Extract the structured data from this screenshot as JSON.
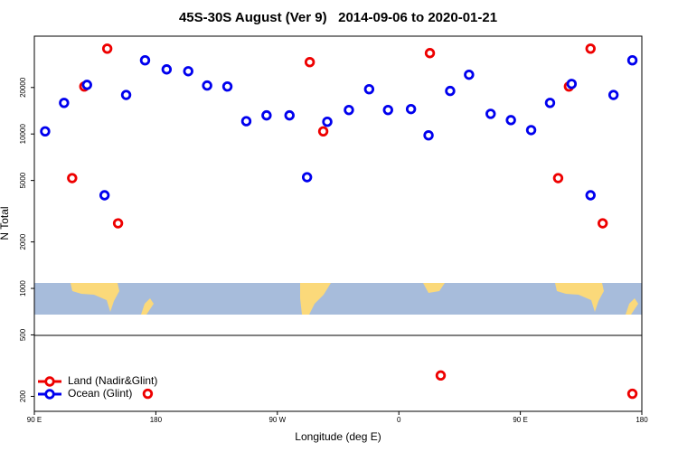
{
  "chart_data": {
    "type": "scatter",
    "title": "45S-30S August (Ver 9)   2014-09-06 to 2020-01-21",
    "x_label": "Longitude (deg E)",
    "y_label": "N Total",
    "log_y": true,
    "xlim": [
      90,
      540
    ],
    "xticks": [
      {
        "value": 90,
        "label": "90 E"
      },
      180,
      {
        "value": 270,
        "label": "90 W"
      },
      {
        "value": 360,
        "label": "0"
      },
      {
        "value": 450,
        "label": "90 E"
      },
      {
        "value": 540,
        "label": "180"
      }
    ],
    "ylim": [
      160,
      43000
    ],
    "yticks": [
      200,
      500,
      1000,
      2000,
      5000,
      10000,
      20000
    ],
    "legend_position": "lower left",
    "series": [
      {
        "name": "Land (Nadir&Glint)",
        "color": "#ee0000",
        "x": [
          118,
          127,
          144,
          152,
          174,
          294,
          304,
          383,
          391,
          478,
          486,
          502,
          511,
          533
        ],
        "values": [
          5180,
          20300,
          35700,
          2640,
          208,
          29200,
          10400,
          33400,
          273,
          5180,
          20300,
          35700,
          2640,
          208
        ]
      },
      {
        "name": "Ocean (Glint)",
        "color": "#0000ee",
        "x": [
          98,
          112,
          129,
          142,
          158,
          172,
          188,
          204,
          218,
          233,
          247,
          262,
          279,
          292,
          307,
          323,
          338,
          352,
          369,
          382,
          398,
          412,
          428,
          443,
          458,
          472,
          488,
          502,
          519,
          533
        ],
        "values": [
          10400,
          15900,
          20800,
          4010,
          17900,
          30000,
          26200,
          25500,
          20600,
          20300,
          12100,
          13200,
          13200,
          5250,
          12000,
          14300,
          19500,
          14300,
          14500,
          9800,
          19000,
          24200,
          13500,
          12300,
          10600,
          15900,
          21100,
          4010,
          17900,
          30000
        ]
      }
    ]
  }
}
